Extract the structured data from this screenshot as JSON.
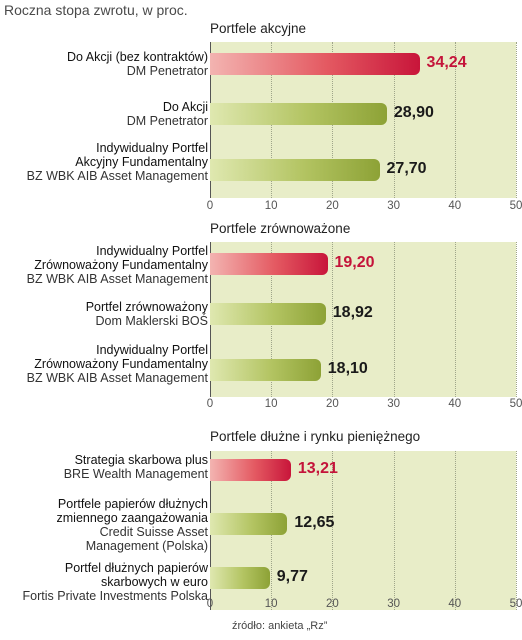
{
  "header": "Roczna stopa zwrotu, w proc.",
  "source": "źródło: ankieta „Rz”",
  "chart_data": [
    {
      "type": "bar",
      "orientation": "horizontal",
      "title": "Portfele akcyjne",
      "xlim": [
        0,
        50
      ],
      "ticks": [
        "0",
        "10",
        "20",
        "30",
        "40",
        "50"
      ],
      "bars": [
        {
          "name_lines": [
            "Do Akcji (bez kontraktów)"
          ],
          "manager_lines": [
            "DM Penetrator"
          ],
          "value": 34.24,
          "label": "34,24"
        },
        {
          "name_lines": [
            "Do Akcji"
          ],
          "manager_lines": [
            "DM Penetrator"
          ],
          "value": 28.9,
          "label": "28,90"
        },
        {
          "name_lines": [
            "Indywidualny Portfel",
            "Akcyjny Fundamentalny"
          ],
          "manager_lines": [
            "BZ WBK AIB Asset Management"
          ],
          "value": 27.7,
          "label": "27,70"
        }
      ]
    },
    {
      "type": "bar",
      "orientation": "horizontal",
      "title": "Portfele zrównoważone",
      "xlim": [
        0,
        50
      ],
      "ticks": [
        "0",
        "10",
        "20",
        "30",
        "40",
        "50"
      ],
      "bars": [
        {
          "name_lines": [
            "Indywidualny Portfel",
            "Zrównoważony Fundamentalny"
          ],
          "manager_lines": [
            "BZ WBK AIB Asset Management"
          ],
          "value": 19.2,
          "label": "19,20"
        },
        {
          "name_lines": [
            "Portfel zrównoważony"
          ],
          "manager_lines": [
            "Dom Maklerski BOŚ"
          ],
          "value": 18.92,
          "label": "18,92"
        },
        {
          "name_lines": [
            "Indywidualny Portfel",
            "Zrównoważony Fundamentalny"
          ],
          "manager_lines": [
            "BZ WBK AIB Asset Management"
          ],
          "value": 18.1,
          "label": "18,10"
        }
      ]
    },
    {
      "type": "bar",
      "orientation": "horizontal",
      "title": "Portfele dłużne i rynku pieniężnego",
      "xlim": [
        0,
        50
      ],
      "ticks": [
        "0",
        "10",
        "20",
        "30",
        "40",
        "50"
      ],
      "bars": [
        {
          "name_lines": [
            "Strategia skarbowa plus"
          ],
          "manager_lines": [
            "BRE Wealth Management"
          ],
          "value": 13.21,
          "label": "13,21"
        },
        {
          "name_lines": [
            "Portfele papierów dłużnych",
            "zmiennego zaangażowania"
          ],
          "manager_lines": [
            "Credit Suisse Asset",
            "Management (Polska)"
          ],
          "value": 12.65,
          "label": "12,65"
        },
        {
          "name_lines": [
            "Portfel dłużnych papierów",
            "skarbowych w euro"
          ],
          "manager_lines": [
            "Fortis Private Investments Polska"
          ],
          "value": 9.77,
          "label": "9,77"
        }
      ]
    }
  ]
}
